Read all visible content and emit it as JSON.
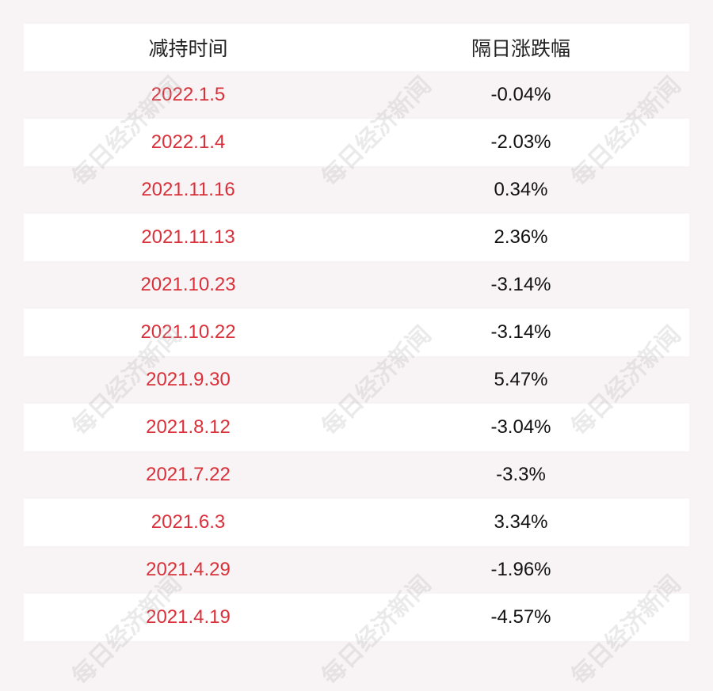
{
  "watermark": "每日经济新闻",
  "chart_data": {
    "type": "table",
    "columns": [
      "减持时间",
      "隔日涨跌幅"
    ],
    "rows": [
      [
        "2022.1.5",
        "-0.04%"
      ],
      [
        "2022.1.4",
        "-2.03%"
      ],
      [
        "2021.11.16",
        "0.34%"
      ],
      [
        "2021.11.13",
        "2.36%"
      ],
      [
        "2021.10.23",
        "-3.14%"
      ],
      [
        "2021.10.22",
        "-3.14%"
      ],
      [
        "2021.9.30",
        "5.47%"
      ],
      [
        "2021.8.12",
        "-3.04%"
      ],
      [
        "2021.7.22",
        "-3.3%"
      ],
      [
        "2021.6.3",
        "3.34%"
      ],
      [
        "2021.4.29",
        "-1.96%"
      ],
      [
        "2021.4.19",
        "-4.57%"
      ]
    ],
    "colors": {
      "date": "#d9303a",
      "value": "#111111",
      "stripe": "#f8f4f5"
    }
  }
}
